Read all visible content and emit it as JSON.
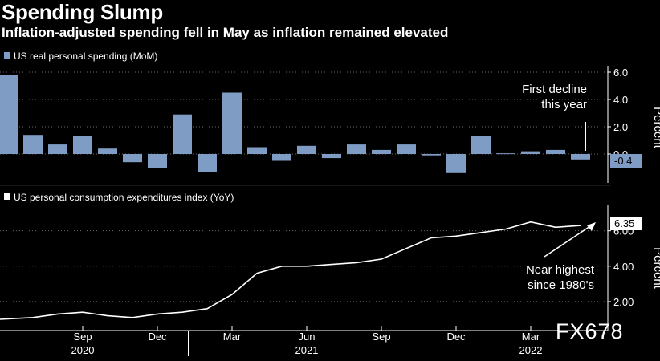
{
  "header": {
    "title": "Spending Slump",
    "subtitle": "Inflation-adjusted spending fell in May as inflation remained elevated"
  },
  "watermark": "FX678",
  "colors": {
    "background": "#000000",
    "bar": "#7f9cc4",
    "line": "#ffffff",
    "grid": "#6a6a6a"
  },
  "chart_data": [
    {
      "type": "bar",
      "legend": "US real personal spending (MoM)",
      "ylabel": "Percent",
      "ylim": [
        -1.6,
        6.0
      ],
      "yticks": [
        "6.0",
        "4.0",
        "2.0",
        "0.0"
      ],
      "values": [
        5.8,
        1.4,
        0.7,
        1.3,
        0.4,
        -0.6,
        -1.0,
        2.9,
        -1.3,
        4.5,
        0.5,
        -0.5,
        0.6,
        -0.3,
        0.7,
        0.3,
        0.7,
        -0.1,
        -1.4,
        1.3,
        0.05,
        0.2,
        0.3,
        -0.4
      ],
      "last_value_label": "-0.4",
      "annotation": [
        "First decline",
        "this year"
      ]
    },
    {
      "type": "line",
      "legend": "US personal consumption expenditures index (YoY)",
      "ylabel": "Percent",
      "ylim": [
        1.0,
        7.3
      ],
      "yticks": [
        "6.00",
        "4.00",
        "2.00"
      ],
      "values": [
        1.0,
        1.1,
        1.3,
        1.4,
        1.2,
        1.1,
        1.3,
        1.4,
        1.6,
        2.4,
        3.6,
        4.0,
        4.0,
        4.1,
        4.2,
        4.4,
        5.0,
        5.6,
        5.7,
        5.9,
        6.1,
        6.5,
        6.2,
        6.3
      ],
      "last_value_label": "6.35",
      "annotation": [
        "Near highest",
        "since 1980's"
      ]
    }
  ],
  "x_axis": {
    "ticks": [
      {
        "index": 3,
        "label": "Sep",
        "year": "2020"
      },
      {
        "index": 6,
        "label": "Dec",
        "year": ""
      },
      {
        "index": 9,
        "label": "Mar",
        "year": ""
      },
      {
        "index": 12,
        "label": "Jun",
        "year": "2021"
      },
      {
        "index": 15,
        "label": "Sep",
        "year": ""
      },
      {
        "index": 18,
        "label": "Dec",
        "year": ""
      },
      {
        "index": 21,
        "label": "Mar",
        "year": "2022"
      }
    ]
  }
}
